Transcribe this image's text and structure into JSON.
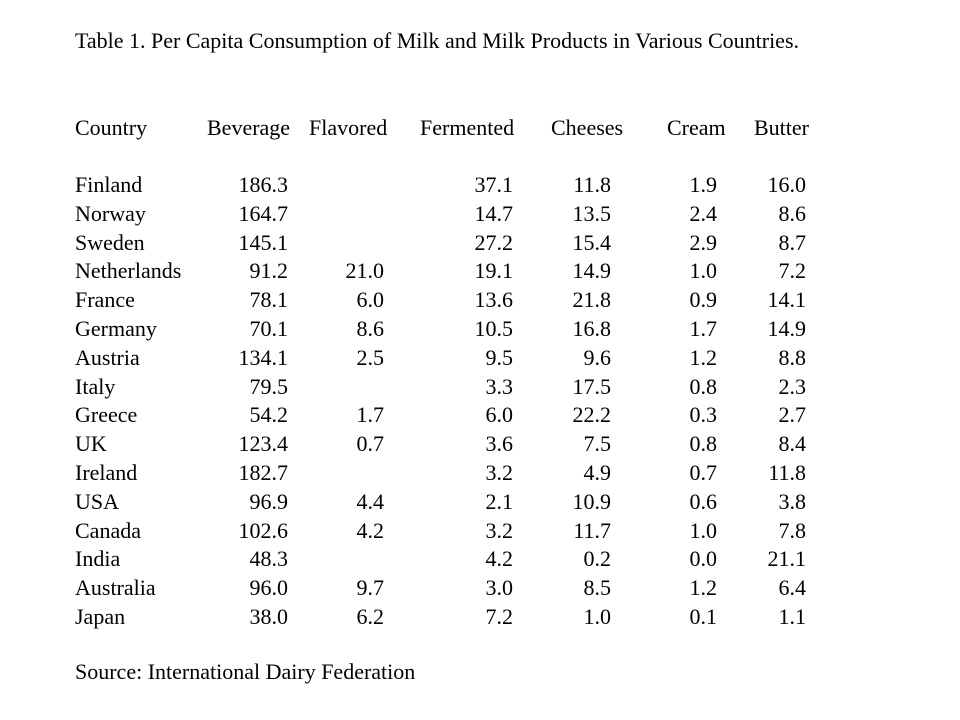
{
  "title": "Table 1. Per Capita Consumption of Milk and Milk Products in Various Countries.",
  "headers": {
    "country": "Country",
    "beverage": "Beverage",
    "flavored": "Flavored",
    "fermented": "Fermented",
    "cheeses": "Cheeses",
    "cream": "Cream",
    "butter": "Butter"
  },
  "rows": [
    {
      "country": "Finland",
      "beverage": "186.3",
      "flavored": "",
      "fermented": "37.1",
      "cheeses": "11.8",
      "cream": "1.9",
      "butter": "16.0"
    },
    {
      "country": "Norway",
      "beverage": "164.7",
      "flavored": "",
      "fermented": "14.7",
      "cheeses": "13.5",
      "cream": "2.4",
      "butter": "8.6"
    },
    {
      "country": "Sweden",
      "beverage": "145.1",
      "flavored": "",
      "fermented": "27.2",
      "cheeses": "15.4",
      "cream": "2.9",
      "butter": "8.7"
    },
    {
      "country": "Netherlands",
      "beverage": "91.2",
      "flavored": "21.0",
      "fermented": "19.1",
      "cheeses": "14.9",
      "cream": "1.0",
      "butter": "7.2"
    },
    {
      "country": "France",
      "beverage": "78.1",
      "flavored": "6.0",
      "fermented": "13.6",
      "cheeses": "21.8",
      "cream": "0.9",
      "butter": "14.1"
    },
    {
      "country": "Germany",
      "beverage": "70.1",
      "flavored": "8.6",
      "fermented": "10.5",
      "cheeses": "16.8",
      "cream": "1.7",
      "butter": "14.9"
    },
    {
      "country": "Austria",
      "beverage": "134.1",
      "flavored": "2.5",
      "fermented": "9.5",
      "cheeses": "9.6",
      "cream": "1.2",
      "butter": "8.8"
    },
    {
      "country": "Italy",
      "beverage": "79.5",
      "flavored": "",
      "fermented": "3.3",
      "cheeses": "17.5",
      "cream": "0.8",
      "butter": "2.3"
    },
    {
      "country": "Greece",
      "beverage": "54.2",
      "flavored": "1.7",
      "fermented": "6.0",
      "cheeses": "22.2",
      "cream": "0.3",
      "butter": "2.7"
    },
    {
      "country": "UK",
      "beverage": "123.4",
      "flavored": "0.7",
      "fermented": "3.6",
      "cheeses": "7.5",
      "cream": "0.8",
      "butter": "8.4"
    },
    {
      "country": "Ireland",
      "beverage": "182.7",
      "flavored": "",
      "fermented": "3.2",
      "cheeses": "4.9",
      "cream": "0.7",
      "butter": "11.8"
    },
    {
      "country": "USA",
      "beverage": "96.9",
      "flavored": "4.4",
      "fermented": "2.1",
      "cheeses": "10.9",
      "cream": "0.6",
      "butter": "3.8"
    },
    {
      "country": "Canada",
      "beverage": "102.6",
      "flavored": "4.2",
      "fermented": "3.2",
      "cheeses": "11.7",
      "cream": "1.0",
      "butter": "7.8"
    },
    {
      "country": "India",
      "beverage": "48.3",
      "flavored": "",
      "fermented": "4.2",
      "cheeses": "0.2",
      "cream": "0.0",
      "butter": "21.1"
    },
    {
      "country": "Australia",
      "beverage": "96.0",
      "flavored": "9.7",
      "fermented": "3.0",
      "cheeses": "8.5",
      "cream": "1.2",
      "butter": "6.4"
    },
    {
      "country": "Japan",
      "beverage": "38.0",
      "flavored": "6.2",
      "fermented": "7.2",
      "cheeses": "1.0",
      "cream": "0.1",
      "butter": "1.1"
    }
  ],
  "source": "Source: International Dairy Federation"
}
